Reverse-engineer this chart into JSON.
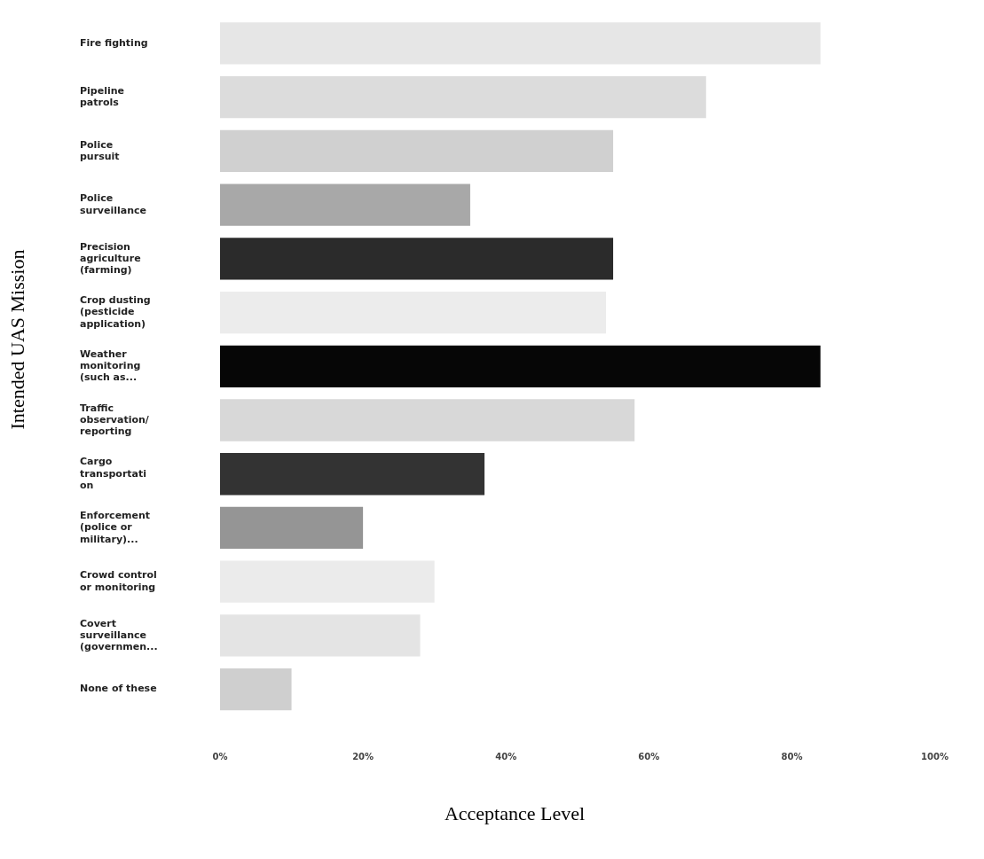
{
  "chart_data": {
    "type": "bar",
    "orientation": "horizontal",
    "xlabel": "Acceptance Level",
    "ylabel": "Intended UAS Mission",
    "categories": [
      "Fire fighting",
      "Pipeline patrols",
      "Police pursuit",
      "Police surveillance",
      "Precision agriculture (farming)",
      "Crop dusting (pesticide application)",
      "Weather monitoring (such as...",
      "Traffic observation/reporting",
      "Cargo transportation",
      "Enforcement (police or military)...",
      "Crowd control or monitoring",
      "Covert surveillance (governmen...",
      "None of these"
    ],
    "values": [
      84,
      68,
      55,
      35,
      55,
      54,
      84,
      58,
      37,
      20,
      30,
      28,
      10
    ],
    "colors": [
      "#e6e6e6",
      "#dcdcdc",
      "#d0d0d0",
      "#a8a8a8",
      "#2b2b2b",
      "#ececec",
      "#060606",
      "#d8d8d8",
      "#333333",
      "#959595",
      "#ebebeb",
      "#e4e4e4",
      "#cfcfcf"
    ],
    "xlim": [
      0,
      100
    ],
    "xticks": [
      {
        "value": 0,
        "label": "0%"
      },
      {
        "value": 20,
        "label": "20%"
      },
      {
        "value": 40,
        "label": "40%"
      },
      {
        "value": 60,
        "label": "60%"
      },
      {
        "value": 80,
        "label": "80%"
      },
      {
        "value": 100,
        "label": "100%"
      }
    ],
    "grid": false,
    "legend": false
  }
}
